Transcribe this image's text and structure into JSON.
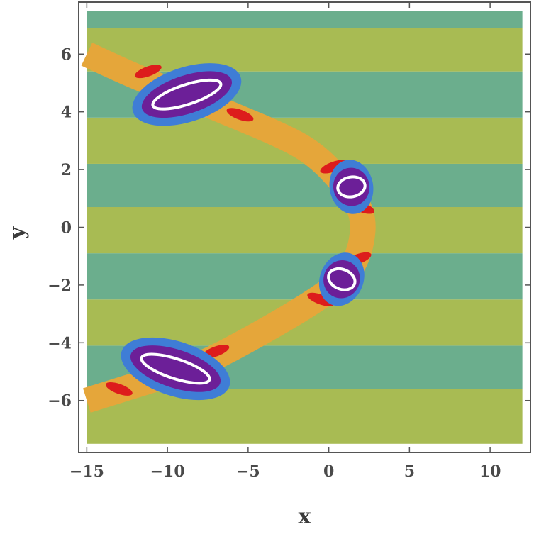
{
  "chart_data": {
    "type": "heatmap",
    "xlabel": "x",
    "ylabel": "y",
    "xlim": [
      -15.5,
      12.5
    ],
    "ylim": [
      -7.8,
      7.8
    ],
    "x_ticks": [
      -15,
      -10,
      -5,
      0,
      5,
      10
    ],
    "y_ticks": [
      -6,
      -4,
      -2,
      0,
      2,
      4,
      6
    ],
    "colors": {
      "band_green": "#a8bb53",
      "band_teal": "#6bae8d",
      "ridge_orange": "#e5a63a",
      "lobe_red": "#dd1c1c",
      "halo_blue": "#3f7dd6",
      "core_purple": "#6c1f98",
      "contour_white": "#ffffff"
    },
    "bands": [
      {
        "y0": -7.5,
        "y1": -5.6,
        "color": "band_green"
      },
      {
        "y0": -5.6,
        "y1": -4.1,
        "color": "band_teal"
      },
      {
        "y0": -4.1,
        "y1": -2.5,
        "color": "band_green"
      },
      {
        "y0": -2.5,
        "y1": -0.9,
        "color": "band_teal"
      },
      {
        "y0": -0.9,
        "y1": 0.7,
        "color": "band_green"
      },
      {
        "y0": 0.7,
        "y1": 2.2,
        "color": "band_teal"
      },
      {
        "y0": 2.2,
        "y1": 3.8,
        "color": "band_green"
      },
      {
        "y0": 3.8,
        "y1": 5.4,
        "color": "band_teal"
      },
      {
        "y0": 5.4,
        "y1": 6.9,
        "color": "band_green"
      },
      {
        "y0": 6.9,
        "y1": 7.5,
        "color": "band_teal"
      }
    ],
    "ridge_centerline": [
      [
        -15.0,
        6.0
      ],
      [
        -12.0,
        5.2
      ],
      [
        -9.0,
        4.6
      ],
      [
        -6.0,
        3.9
      ],
      [
        -3.0,
        3.2
      ],
      [
        -1.0,
        2.6
      ],
      [
        0.8,
        1.6
      ],
      [
        2.2,
        0.5
      ],
      [
        2.0,
        -0.8
      ],
      [
        1.0,
        -1.8
      ],
      [
        -1.0,
        -2.6
      ],
      [
        -4.0,
        -3.6
      ],
      [
        -8.0,
        -4.8
      ],
      [
        -11.0,
        -5.3
      ],
      [
        -15.0,
        -6.0
      ]
    ],
    "features": [
      {
        "center": [
          -8.8,
          4.6
        ],
        "rx": 2.6,
        "ry": 0.38,
        "angle_deg": -18
      },
      {
        "center": [
          1.4,
          1.4
        ],
        "rx": 1.0,
        "ry": 0.38,
        "angle_deg": -10
      },
      {
        "center": [
          0.8,
          -1.8
        ],
        "rx": 1.0,
        "ry": 0.38,
        "angle_deg": 22
      },
      {
        "center": [
          -9.5,
          -4.9
        ],
        "rx": 2.6,
        "ry": 0.38,
        "angle_deg": 18
      }
    ],
    "red_lobes": [
      [
        -11.2,
        5.4
      ],
      [
        -5.5,
        3.9
      ],
      [
        0.3,
        2.1
      ],
      [
        2.0,
        0.7
      ],
      [
        1.8,
        -1.1
      ],
      [
        -0.5,
        -2.5
      ],
      [
        -7.0,
        -4.3
      ],
      [
        -13.0,
        -5.6
      ]
    ],
    "grid": false
  }
}
